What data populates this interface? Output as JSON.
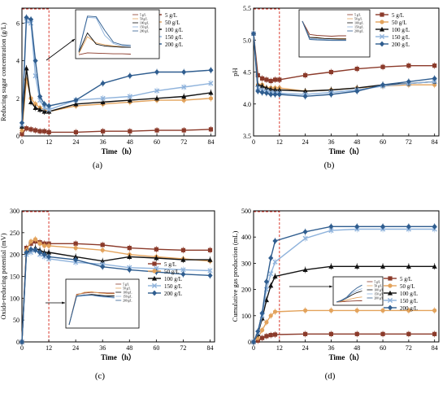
{
  "colors": {
    "5 g/L": "#8b3a2a",
    "50 g/L": "#e3a35c",
    "100 g/L": "#111111",
    "150 g/L": "#8fb3dc",
    "200 g/L": "#2f5d8f",
    "highlight": "#d9372b"
  },
  "chart_data": [
    {
      "type": "line",
      "label": "(a)",
      "xlabel": "Time（h）",
      "ylabel": "Reducing sugar concentration (g/L)",
      "xlim": [
        0,
        86
      ],
      "ylim": [
        0,
        6.8
      ],
      "xticks": [
        0,
        12,
        24,
        36,
        48,
        60,
        72,
        84
      ],
      "yticks": [
        0,
        2,
        4,
        6
      ],
      "legend_position": "top-right",
      "series": [
        {
          "name": "5 g/L",
          "marker": "square",
          "x": [
            0,
            2,
            4,
            6,
            8,
            10,
            12,
            24,
            36,
            48,
            60,
            72,
            84
          ],
          "y": [
            0.1,
            0.4,
            0.35,
            0.3,
            0.25,
            0.25,
            0.2,
            0.2,
            0.25,
            0.25,
            0.3,
            0.3,
            0.35
          ]
        },
        {
          "name": "50 g/L",
          "marker": "circle",
          "x": [
            0,
            2,
            4,
            6,
            8,
            10,
            12,
            24,
            36,
            48,
            60,
            72,
            84
          ],
          "y": [
            0.3,
            3.0,
            2.0,
            1.7,
            1.5,
            1.4,
            1.3,
            1.6,
            1.7,
            1.8,
            1.9,
            1.9,
            2.0
          ]
        },
        {
          "name": "100 g/L",
          "marker": "triangle",
          "x": [
            0,
            2,
            4,
            6,
            8,
            10,
            12,
            24,
            36,
            48,
            60,
            72,
            84
          ],
          "y": [
            0.5,
            3.6,
            1.8,
            1.5,
            1.4,
            1.3,
            1.3,
            1.7,
            1.8,
            1.9,
            2.0,
            2.1,
            2.3
          ]
        },
        {
          "name": "150 g/L",
          "marker": "x",
          "x": [
            0,
            2,
            4,
            6,
            8,
            10,
            12,
            24,
            36,
            48,
            60,
            72,
            84
          ],
          "y": [
            0.6,
            6.1,
            6.0,
            3.2,
            1.9,
            1.5,
            1.4,
            1.9,
            2.0,
            2.1,
            2.4,
            2.6,
            2.8
          ]
        },
        {
          "name": "200 g/L",
          "marker": "diamond",
          "x": [
            0,
            2,
            4,
            6,
            8,
            10,
            12,
            24,
            36,
            48,
            60,
            72,
            84
          ],
          "y": [
            0.7,
            6.3,
            6.2,
            4.0,
            2.1,
            1.7,
            1.6,
            1.9,
            2.8,
            3.2,
            3.4,
            3.4,
            3.5
          ]
        }
      ]
    },
    {
      "type": "line",
      "label": "(b)",
      "xlabel": "Time（h）",
      "ylabel": "pH",
      "xlim": [
        0,
        86
      ],
      "ylim": [
        3.5,
        5.5
      ],
      "xticks": [
        0,
        12,
        24,
        36,
        48,
        60,
        72,
        84
      ],
      "yticks": [
        3.5,
        4.0,
        4.5,
        5.0,
        5.5
      ],
      "legend_position": "top-right",
      "series": [
        {
          "name": "5 g/L",
          "marker": "square",
          "x": [
            0,
            2,
            4,
            6,
            8,
            10,
            12,
            24,
            36,
            48,
            60,
            72,
            84
          ],
          "y": [
            5.1,
            4.45,
            4.4,
            4.38,
            4.36,
            4.38,
            4.38,
            4.45,
            4.5,
            4.55,
            4.58,
            4.6,
            4.6
          ]
        },
        {
          "name": "50 g/L",
          "marker": "circle",
          "x": [
            0,
            2,
            4,
            6,
            8,
            10,
            12,
            24,
            36,
            48,
            60,
            72,
            84
          ],
          "y": [
            5.1,
            4.3,
            4.3,
            4.25,
            4.25,
            4.25,
            4.25,
            4.2,
            4.22,
            4.25,
            4.28,
            4.3,
            4.3
          ]
        },
        {
          "name": "100 g/L",
          "marker": "triangle",
          "x": [
            0,
            2,
            4,
            6,
            8,
            10,
            12,
            24,
            36,
            48,
            60,
            72,
            84
          ],
          "y": [
            5.1,
            4.3,
            4.28,
            4.25,
            4.23,
            4.22,
            4.22,
            4.2,
            4.22,
            4.25,
            4.3,
            4.32,
            4.35
          ]
        },
        {
          "name": "150 g/L",
          "marker": "x",
          "x": [
            0,
            2,
            4,
            6,
            8,
            10,
            12,
            24,
            36,
            48,
            60,
            72,
            84
          ],
          "y": [
            5.1,
            4.25,
            4.22,
            4.2,
            4.18,
            4.17,
            4.17,
            4.15,
            4.18,
            4.22,
            4.28,
            4.32,
            4.35
          ]
        },
        {
          "name": "200 g/L",
          "marker": "diamond",
          "x": [
            0,
            2,
            4,
            6,
            8,
            10,
            12,
            24,
            36,
            48,
            60,
            72,
            84
          ],
          "y": [
            5.1,
            4.2,
            4.18,
            4.17,
            4.15,
            4.15,
            4.15,
            4.12,
            4.15,
            4.2,
            4.3,
            4.35,
            4.4
          ]
        }
      ]
    },
    {
      "type": "line",
      "label": "(c)",
      "xlabel": "Time（h）",
      "ylabel": "Oxido-reducing potential (mV)",
      "xlim": [
        0,
        86
      ],
      "ylim": [
        0,
        300
      ],
      "xticks": [
        0,
        12,
        24,
        36,
        48,
        60,
        72,
        84
      ],
      "yticks": [
        0,
        50,
        100,
        150,
        200,
        250,
        300
      ],
      "legend_position": "bottom-right",
      "series": [
        {
          "name": "5 g/L",
          "marker": "square",
          "x": [
            0,
            2,
            4,
            6,
            8,
            10,
            12,
            24,
            36,
            48,
            60,
            72,
            84
          ],
          "y": [
            0,
            215,
            225,
            230,
            228,
            225,
            225,
            225,
            222,
            215,
            212,
            210,
            210
          ]
        },
        {
          "name": "50 g/L",
          "marker": "circle",
          "x": [
            0,
            2,
            4,
            6,
            8,
            10,
            12,
            24,
            36,
            48,
            60,
            72,
            84
          ],
          "y": [
            0,
            210,
            230,
            235,
            225,
            220,
            220,
            215,
            210,
            200,
            195,
            190,
            185
          ]
        },
        {
          "name": "100 g/L",
          "marker": "triangle",
          "x": [
            0,
            2,
            4,
            6,
            8,
            10,
            12,
            24,
            36,
            48,
            60,
            72,
            84
          ],
          "y": [
            0,
            205,
            210,
            215,
            210,
            205,
            205,
            195,
            185,
            195,
            192,
            188,
            188
          ]
        },
        {
          "name": "150 g/L",
          "marker": "x",
          "x": [
            0,
            2,
            4,
            6,
            8,
            10,
            12,
            24,
            36,
            48,
            60,
            72,
            84
          ],
          "y": [
            0,
            200,
            205,
            210,
            200,
            195,
            190,
            182,
            178,
            170,
            168,
            165,
            163
          ]
        },
        {
          "name": "200 g/L",
          "marker": "diamond",
          "x": [
            0,
            2,
            4,
            6,
            8,
            10,
            12,
            24,
            36,
            48,
            60,
            72,
            84
          ],
          "y": [
            0,
            205,
            212,
            210,
            205,
            200,
            195,
            188,
            172,
            165,
            160,
            155,
            152
          ]
        }
      ]
    },
    {
      "type": "line",
      "label": "(d)",
      "xlabel": "Time（h）",
      "ylabel": "Cumulative gas production (mL)",
      "xlim": [
        0,
        86
      ],
      "ylim": [
        0,
        500
      ],
      "xticks": [
        0,
        12,
        24,
        36,
        48,
        60,
        72,
        84
      ],
      "yticks": [
        0,
        100,
        200,
        300,
        400,
        500
      ],
      "legend_position": "right",
      "series": [
        {
          "name": "5 g/L",
          "marker": "square",
          "x": [
            0,
            2,
            4,
            6,
            8,
            10,
            24,
            36,
            48,
            60,
            72,
            84
          ],
          "y": [
            0,
            5,
            15,
            22,
            26,
            28,
            30,
            30,
            30,
            30,
            30,
            30
          ]
        },
        {
          "name": "50 g/L",
          "marker": "circle",
          "x": [
            0,
            2,
            4,
            6,
            8,
            10,
            24,
            36,
            48,
            60,
            72,
            84
          ],
          "y": [
            0,
            15,
            45,
            75,
            100,
            115,
            120,
            120,
            120,
            120,
            120,
            120
          ]
        },
        {
          "name": "100 g/L",
          "marker": "triangle",
          "x": [
            0,
            2,
            4,
            6,
            8,
            10,
            24,
            36,
            48,
            60,
            72,
            84
          ],
          "y": [
            0,
            30,
            90,
            160,
            215,
            250,
            275,
            288,
            288,
            288,
            288,
            288
          ]
        },
        {
          "name": "150 g/L",
          "marker": "x",
          "x": [
            0,
            2,
            4,
            6,
            8,
            10,
            24,
            36,
            48,
            60,
            72,
            84
          ],
          "y": [
            0,
            35,
            100,
            200,
            260,
            305,
            395,
            425,
            430,
            430,
            430,
            430
          ]
        },
        {
          "name": "200 g/L",
          "marker": "diamond",
          "x": [
            0,
            2,
            4,
            6,
            8,
            10,
            24,
            36,
            48,
            60,
            72,
            84
          ],
          "y": [
            0,
            40,
            110,
            230,
            320,
            385,
            420,
            440,
            440,
            440,
            440,
            440
          ]
        }
      ]
    }
  ]
}
